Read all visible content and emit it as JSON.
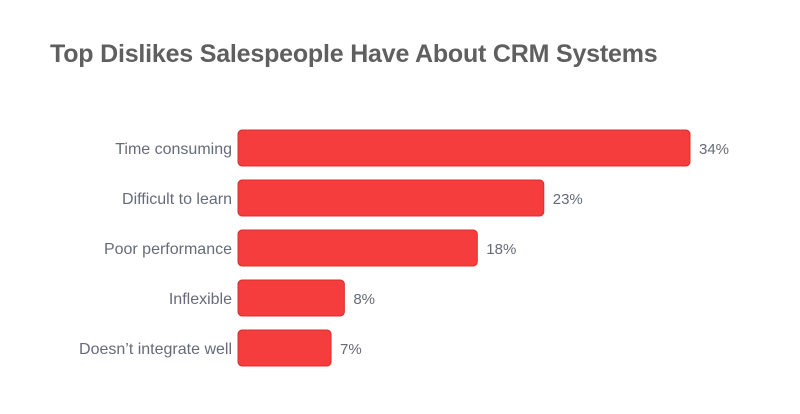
{
  "chart_data": {
    "type": "bar",
    "orientation": "horizontal",
    "title": "Top Dislikes Salespeople Have About CRM Systems",
    "categories": [
      "Time consuming",
      "Difficult to learn",
      "Poor performance",
      "Inflexible",
      "Doesn’t integrate well"
    ],
    "values": [
      34,
      23,
      18,
      8,
      7
    ],
    "value_labels": [
      "34%",
      "23%",
      "18%",
      "8%",
      "7%"
    ],
    "unit": "%",
    "xlim": [
      0,
      34
    ],
    "grid": false,
    "legend": "none",
    "colors": {
      "bar": "#f53d3d",
      "bar_edge": "#d63030",
      "label": "#666b7a",
      "title": "#5f5f5f"
    }
  }
}
